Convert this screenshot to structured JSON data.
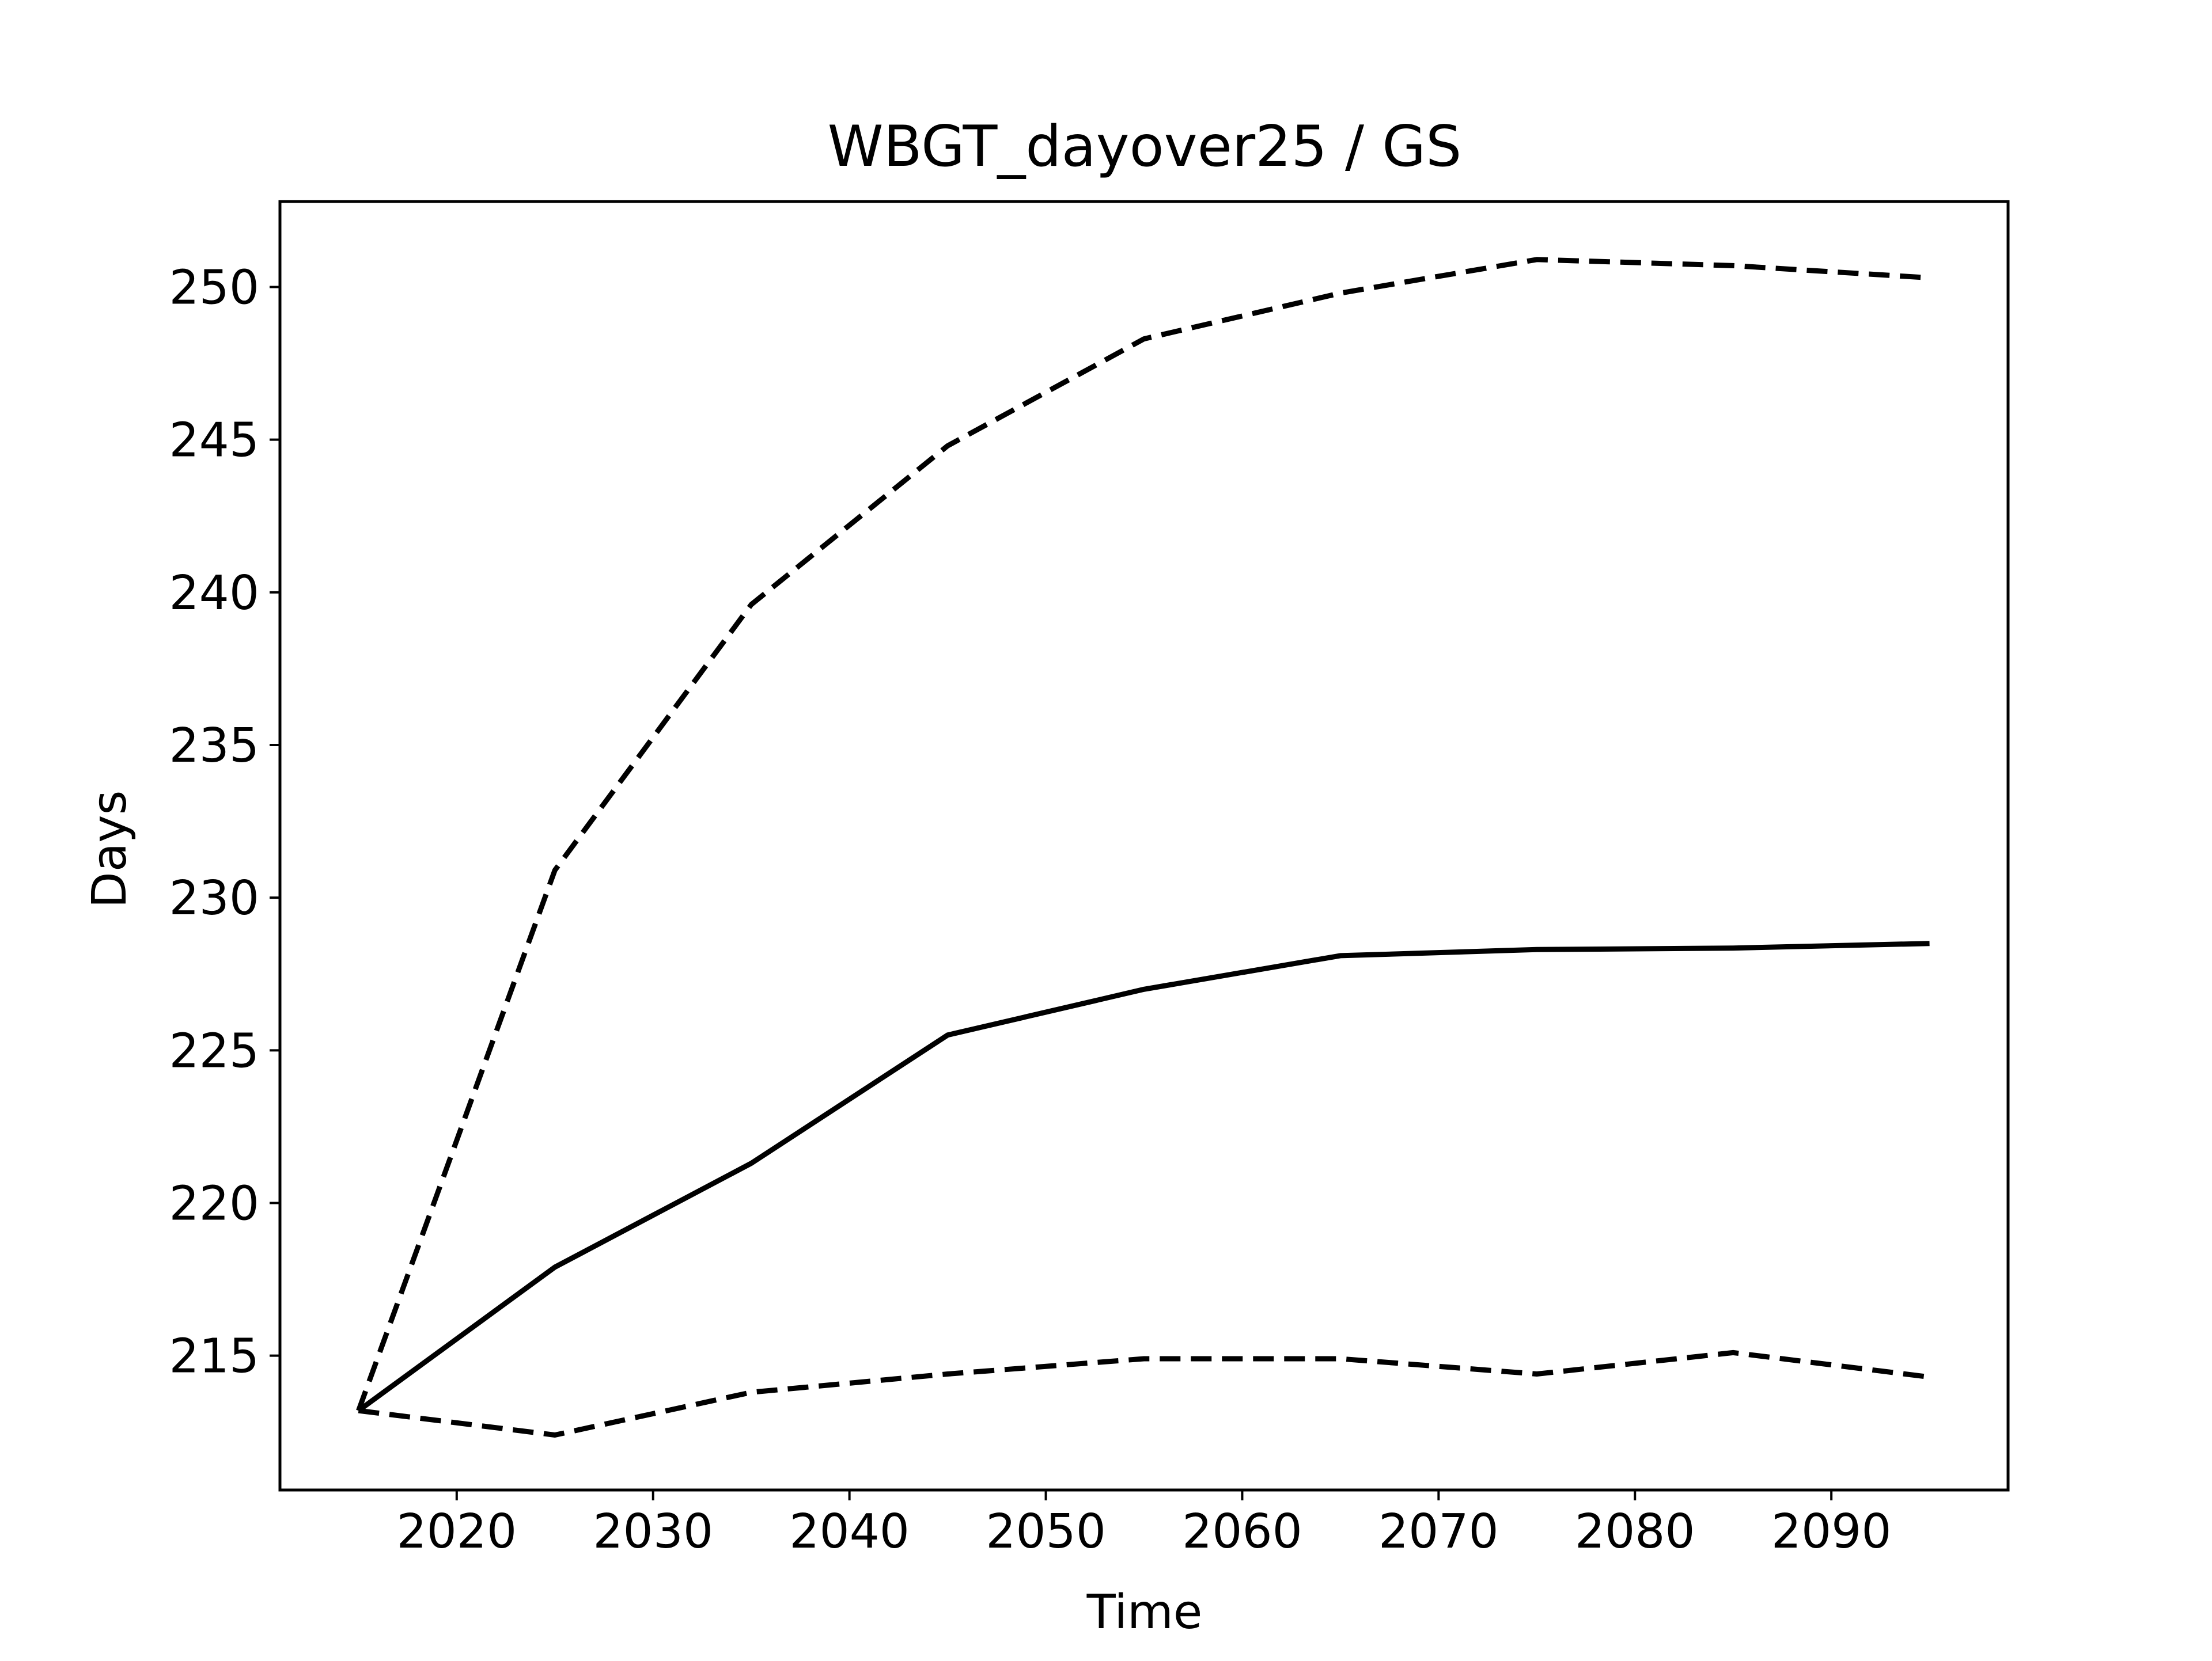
{
  "chart_data": {
    "type": "line",
    "title": "WBGT_dayover25 / GS",
    "xlabel": "Time",
    "ylabel": "Days",
    "xlim": [
      2011,
      2099
    ],
    "ylim": [
      210.6,
      252.8
    ],
    "x_ticks": [
      2020,
      2030,
      2040,
      2050,
      2060,
      2070,
      2080,
      2090
    ],
    "y_ticks": [
      215,
      220,
      225,
      230,
      235,
      240,
      245,
      250
    ],
    "x_tick_labels": [
      "2020",
      "2030",
      "2040",
      "2050",
      "2060",
      "2070",
      "2080",
      "2090"
    ],
    "y_tick_labels": [
      "215",
      "220",
      "225",
      "230",
      "235",
      "240",
      "245",
      "250"
    ],
    "grid": false,
    "legend": "none",
    "colors": {
      "line": "#000000",
      "frame": "#000000",
      "background": "#ffffff"
    },
    "x": [
      2015,
      2025,
      2035,
      2045,
      2055,
      2065,
      2075,
      2085,
      2095
    ],
    "series": [
      {
        "style": "dashed",
        "values": [
          213.2,
          230.9,
          239.6,
          244.8,
          248.3,
          249.8,
          250.9,
          250.7,
          250.3
        ]
      },
      {
        "style": "solid",
        "values": [
          213.2,
          217.9,
          221.3,
          225.5,
          227.0,
          228.1,
          228.3,
          228.35,
          228.5
        ]
      },
      {
        "style": "dashed",
        "values": [
          213.2,
          212.4,
          213.8,
          214.4,
          214.9,
          214.9,
          214.4,
          215.1,
          214.3
        ]
      }
    ]
  }
}
